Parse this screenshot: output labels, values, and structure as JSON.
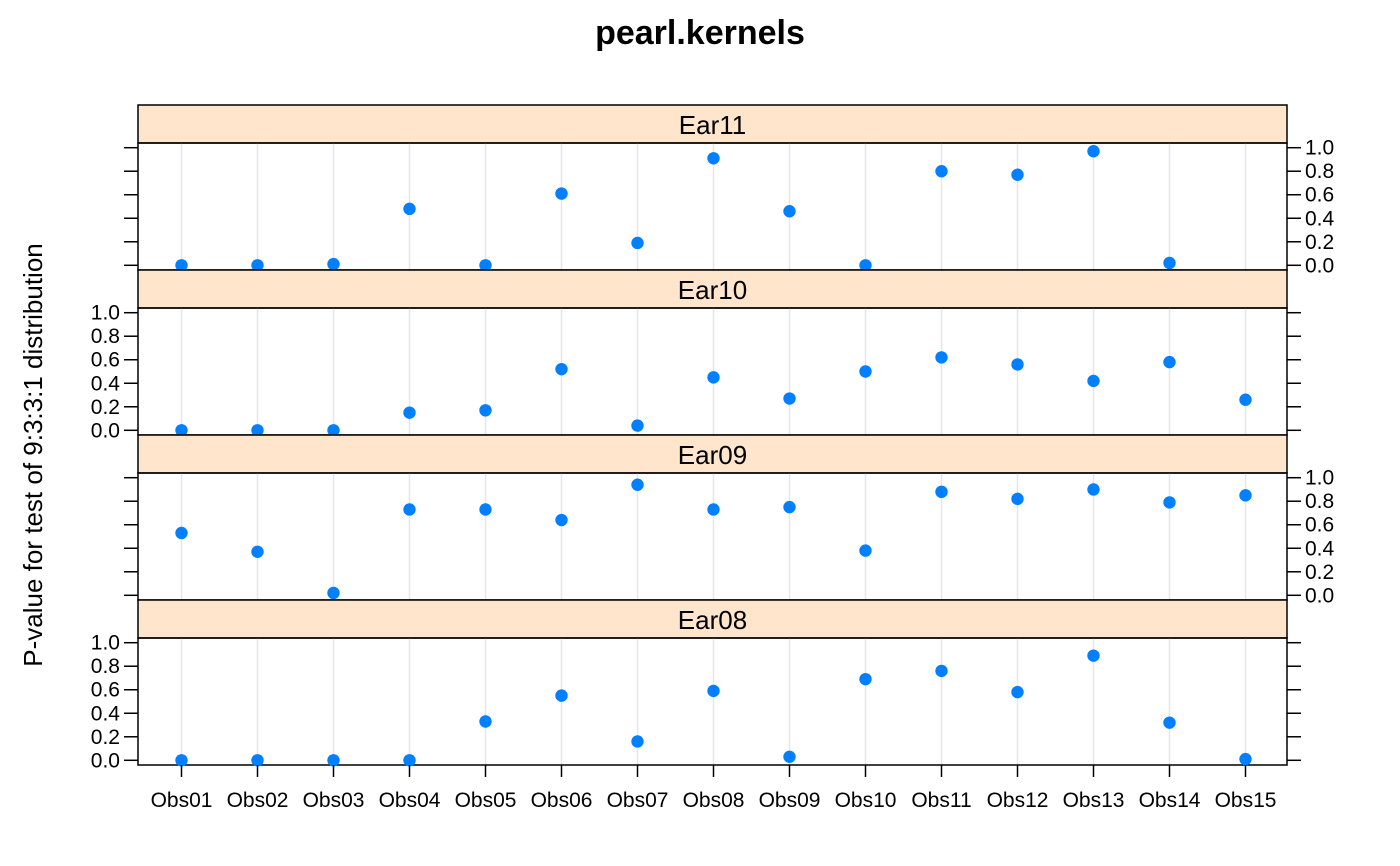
{
  "chart_data": {
    "type": "scatter",
    "title": "pearl.kernels",
    "xlabel": "",
    "ylabel": "P-value for test of 9:3:3:1 distribution",
    "categories": [
      "Obs01",
      "Obs02",
      "Obs03",
      "Obs04",
      "Obs05",
      "Obs06",
      "Obs07",
      "Obs08",
      "Obs09",
      "Obs10",
      "Obs11",
      "Obs12",
      "Obs13",
      "Obs14",
      "Obs15"
    ],
    "ylim": [
      0,
      1
    ],
    "yticks": [
      "0.0",
      "0.2",
      "0.4",
      "0.6",
      "0.8",
      "1.0"
    ],
    "colors": {
      "points": "#0080ff",
      "strip": "#ffe5cc",
      "grid": "#e6e6e6",
      "frame": "#000000"
    },
    "panels": [
      {
        "name": "Ear11",
        "labels_side": "right",
        "values": [
          0.0,
          0.0,
          0.01,
          0.48,
          0.0,
          0.61,
          0.19,
          0.91,
          0.46,
          0.0,
          0.8,
          0.77,
          0.97,
          0.02,
          null
        ]
      },
      {
        "name": "Ear10",
        "labels_side": "left",
        "values": [
          0.0,
          0.0,
          0.0,
          0.15,
          0.17,
          0.52,
          0.04,
          0.45,
          0.27,
          0.5,
          0.62,
          0.56,
          0.42,
          0.58,
          0.26
        ]
      },
      {
        "name": "Ear09",
        "labels_side": "right",
        "values": [
          0.53,
          0.37,
          0.02,
          0.73,
          0.73,
          0.64,
          0.94,
          0.73,
          0.75,
          0.38,
          0.88,
          0.82,
          0.9,
          0.79,
          0.85
        ]
      },
      {
        "name": "Ear08",
        "labels_side": "left",
        "values": [
          0.0,
          0.0,
          0.0,
          0.0,
          0.33,
          0.55,
          0.16,
          0.59,
          0.03,
          0.69,
          0.76,
          0.58,
          0.89,
          0.32,
          0.01
        ]
      }
    ]
  }
}
